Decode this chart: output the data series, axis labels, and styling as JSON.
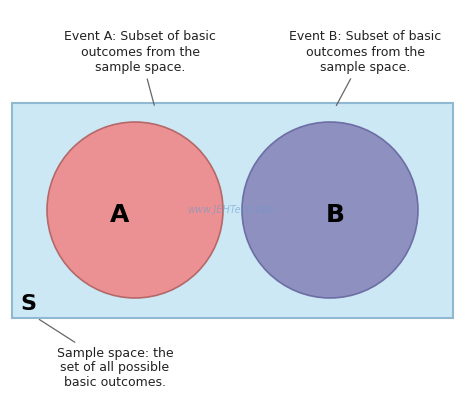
{
  "fig_width": 4.65,
  "fig_height": 3.99,
  "bg_color": "#ffffff",
  "rect_facecolor": "#cde8f5",
  "rect_edgecolor": "#90b8d0",
  "circle_A_facecolor": "#f08888",
  "circle_A_edgecolor": "#b06060",
  "circle_B_facecolor": "#8888bb",
  "circle_B_edgecolor": "#6666a0",
  "label_A": "A",
  "label_B": "B",
  "label_S": "S",
  "watermark_text": "www.JEHTech.com",
  "watermark_color": "#6699cc",
  "watermark_alpha": 0.55,
  "annotation_A_text": "Event A: Subset of basic\noutcomes from the\nsample space.",
  "annotation_B_text": "Event B: Subset of basic\noutcomes from the\nsample space.",
  "annotation_S_text": "Sample space: the\nset of all possible\nbasic outcomes.",
  "annotation_color": "#222222",
  "label_fontsize": 16,
  "annotation_fontsize": 9,
  "arrow_color": "#666666"
}
